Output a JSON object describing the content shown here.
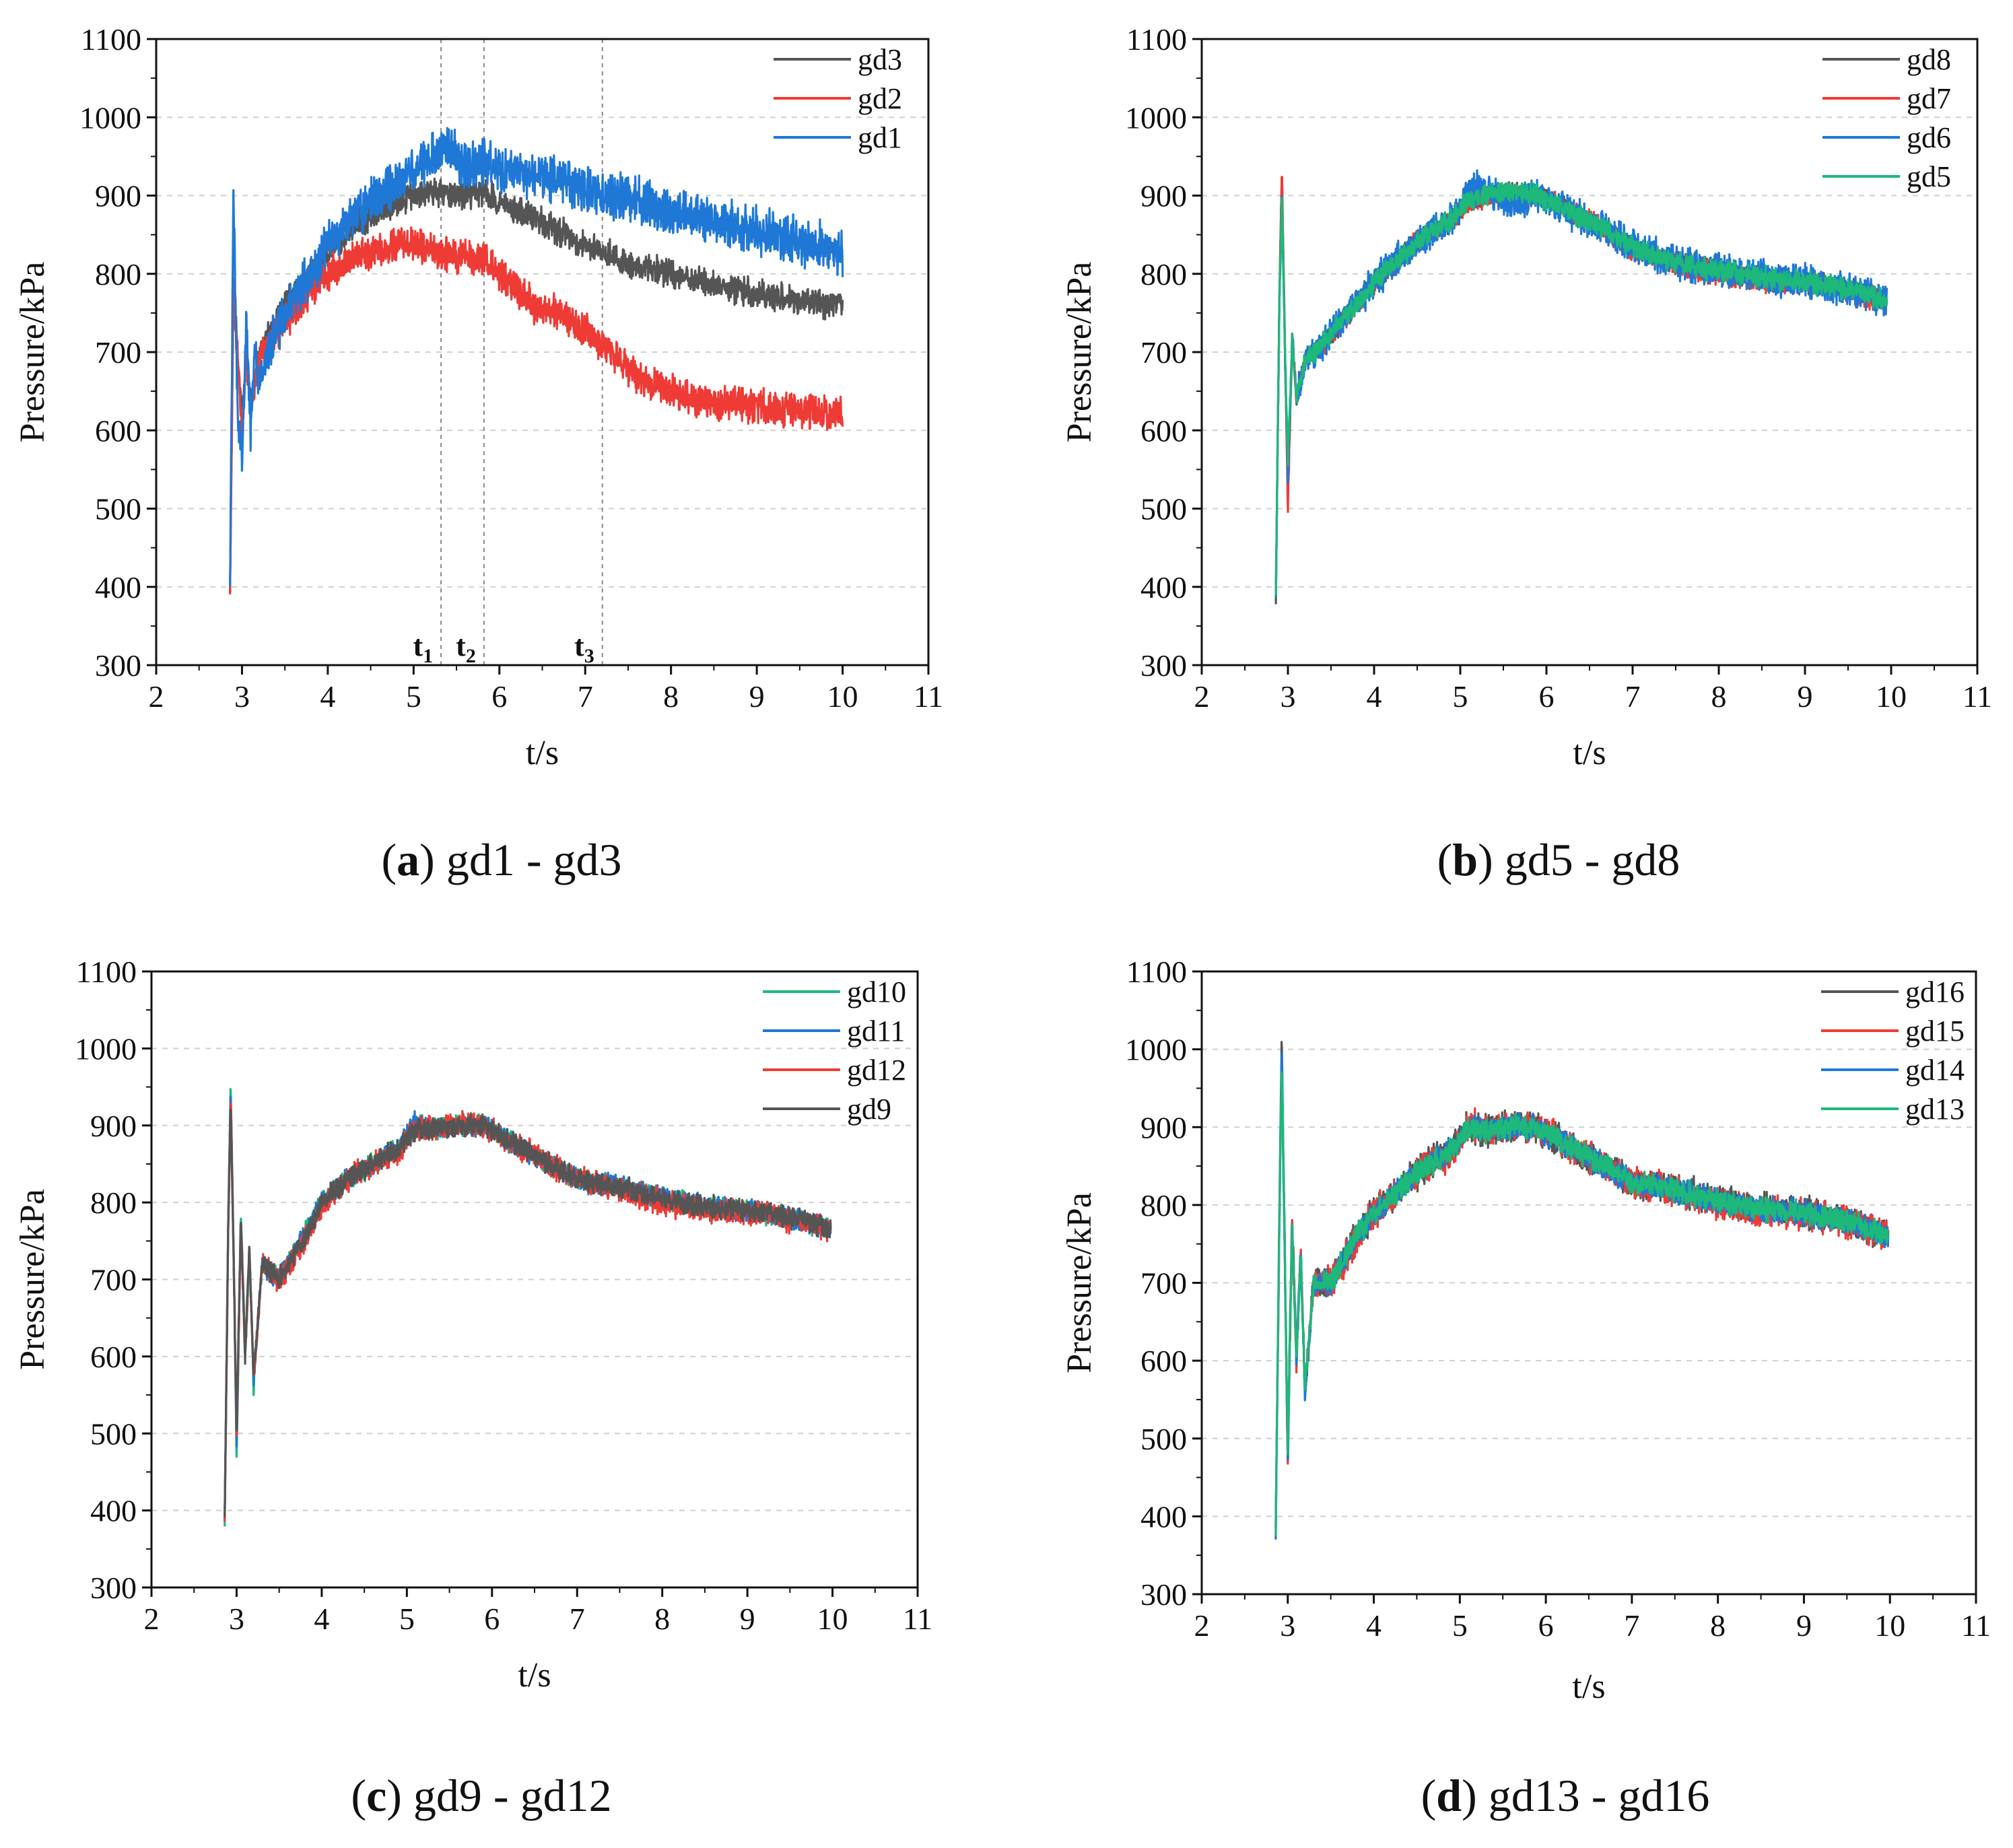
{
  "chart_data": [
    {
      "type": "line",
      "caption": {
        "letter": "a",
        "text": "gd1 - gd3"
      },
      "xlabel": "t/s",
      "ylabel": "Pressure/kPa",
      "xlim": [
        2,
        11
      ],
      "ylim": [
        300,
        1100
      ],
      "x_ticks": [
        "2",
        "3",
        "4",
        "5",
        "6",
        "7",
        "8",
        "9",
        "10",
        "11"
      ],
      "y_ticks": [
        "300",
        "400",
        "500",
        "600",
        "700",
        "800",
        "900",
        "1000",
        "1100"
      ],
      "grid": true,
      "legend_position": "top-right",
      "markers": [
        {
          "label": "t",
          "sub": "1",
          "x": 5.32
        },
        {
          "label": "t",
          "sub": "2",
          "x": 5.82
        },
        {
          "label": "t",
          "sub": "3",
          "x": 7.2
        }
      ],
      "series": [
        {
          "name": "gd3",
          "color": "#555555",
          "noise": 18,
          "x": [
            2.86,
            2.9,
            2.95,
            3.0,
            3.05,
            3.1,
            3.2,
            3.3,
            3.5,
            3.8,
            4.0,
            4.3,
            4.6,
            4.9,
            5.2,
            5.5,
            5.8,
            6.2,
            6.6,
            7.0,
            7.5,
            8.0,
            8.5,
            9.0,
            9.5,
            10.0
          ],
          "y": [
            390,
            780,
            700,
            610,
            700,
            640,
            700,
            720,
            760,
            800,
            830,
            860,
            880,
            895,
            905,
            900,
            905,
            880,
            860,
            835,
            815,
            800,
            785,
            775,
            765,
            760
          ]
        },
        {
          "name": "gd2",
          "color": "#ef3b36",
          "noise": 22,
          "x": [
            2.86,
            2.9,
            2.95,
            3.0,
            3.05,
            3.1,
            3.2,
            3.3,
            3.5,
            3.8,
            4.0,
            4.3,
            4.6,
            4.9,
            5.2,
            5.5,
            5.8,
            6.1,
            6.4,
            6.8,
            7.2,
            7.6,
            8.0,
            8.5,
            9.0,
            9.5,
            10.0
          ],
          "y": [
            390,
            780,
            690,
            600,
            690,
            630,
            690,
            710,
            740,
            780,
            800,
            820,
            830,
            840,
            830,
            820,
            820,
            790,
            760,
            745,
            710,
            670,
            650,
            635,
            630,
            625,
            622
          ]
        },
        {
          "name": "gd1",
          "color": "#1f78d6",
          "noise": 30,
          "x": [
            2.86,
            2.9,
            2.95,
            3.0,
            3.05,
            3.1,
            3.15,
            3.2,
            3.3,
            3.5,
            3.8,
            4.0,
            4.3,
            4.6,
            4.9,
            5.2,
            5.4,
            5.6,
            5.8,
            6.2,
            6.6,
            7.0,
            7.5,
            8.0,
            8.5,
            9.0,
            9.5,
            10.0
          ],
          "y": [
            385,
            910,
            620,
            560,
            740,
            600,
            700,
            660,
            700,
            750,
            800,
            840,
            870,
            900,
            920,
            950,
            960,
            940,
            940,
            930,
            925,
            910,
            895,
            880,
            865,
            855,
            840,
            830
          ]
        }
      ]
    },
    {
      "type": "line",
      "caption": {
        "letter": "b",
        "text": "gd5 - gd8"
      },
      "xlabel": "t/s",
      "ylabel": "Pressure/kPa",
      "xlim": [
        2,
        11
      ],
      "ylim": [
        300,
        1100
      ],
      "x_ticks": [
        "2",
        "3",
        "4",
        "5",
        "6",
        "7",
        "8",
        "9",
        "10",
        "11"
      ],
      "y_ticks": [
        "300",
        "400",
        "500",
        "600",
        "700",
        "800",
        "900",
        "1000",
        "1100"
      ],
      "grid": true,
      "legend_position": "top-right",
      "series": [
        {
          "name": "gd8",
          "color": "#555555",
          "noise": 14,
          "x": [
            2.86,
            2.9,
            2.93,
            2.97,
            3.0,
            3.05,
            3.1,
            3.2,
            3.4,
            3.7,
            4.0,
            4.3,
            4.6,
            4.9,
            5.1,
            5.3,
            5.6,
            5.9,
            6.2,
            6.6,
            7.0,
            7.5,
            8.0,
            8.5,
            9.0,
            9.5,
            9.95
          ],
          "y": [
            385,
            760,
            930,
            680,
            520,
            720,
            640,
            690,
            710,
            750,
            790,
            820,
            850,
            870,
            890,
            900,
            905,
            900,
            885,
            860,
            835,
            815,
            805,
            795,
            790,
            780,
            765
          ]
        },
        {
          "name": "gd7",
          "color": "#ef3b36",
          "noise": 14,
          "x": [
            2.86,
            2.9,
            2.93,
            2.97,
            3.0,
            3.05,
            3.1,
            3.2,
            3.4,
            3.7,
            4.0,
            4.3,
            4.6,
            4.9,
            5.1,
            5.3,
            5.6,
            5.9,
            6.2,
            6.6,
            7.0,
            7.5,
            8.0,
            8.5,
            9.0,
            9.5,
            9.95
          ],
          "y": [
            385,
            760,
            935,
            680,
            500,
            720,
            640,
            690,
            710,
            750,
            790,
            820,
            850,
            870,
            890,
            900,
            905,
            900,
            885,
            860,
            830,
            812,
            800,
            790,
            788,
            778,
            765
          ]
        },
        {
          "name": "gd6",
          "color": "#1f78d6",
          "noise": 22,
          "x": [
            2.86,
            2.9,
            2.93,
            2.97,
            3.0,
            3.05,
            3.1,
            3.2,
            3.4,
            3.7,
            4.0,
            4.3,
            4.6,
            4.9,
            5.1,
            5.3,
            5.6,
            5.9,
            6.2,
            6.6,
            7.0,
            7.5,
            8.0,
            8.5,
            9.0,
            9.5,
            9.95
          ],
          "y": [
            385,
            760,
            900,
            680,
            540,
            720,
            640,
            690,
            710,
            750,
            790,
            820,
            850,
            870,
            905,
            910,
            890,
            900,
            885,
            860,
            835,
            815,
            805,
            795,
            790,
            780,
            765
          ]
        },
        {
          "name": "gd5",
          "color": "#1db87a",
          "noise": 14,
          "x": [
            2.86,
            2.9,
            2.93,
            2.97,
            3.0,
            3.05,
            3.1,
            3.2,
            3.4,
            3.7,
            4.0,
            4.3,
            4.6,
            4.9,
            5.1,
            5.3,
            5.6,
            5.9,
            6.2,
            6.6,
            7.0,
            7.5,
            8.0,
            8.5,
            9.0,
            9.5,
            9.95
          ],
          "y": [
            385,
            760,
            895,
            680,
            560,
            720,
            640,
            690,
            710,
            750,
            790,
            820,
            850,
            870,
            895,
            900,
            905,
            900,
            885,
            860,
            835,
            815,
            805,
            795,
            790,
            780,
            765
          ]
        }
      ]
    },
    {
      "type": "line",
      "caption": {
        "letter": "c",
        "text": "gd9 - gd12"
      },
      "xlabel": "t/s",
      "ylabel": "Pressure/kPa",
      "xlim": [
        2,
        11
      ],
      "ylim": [
        300,
        1100
      ],
      "x_ticks": [
        "2",
        "3",
        "4",
        "5",
        "6",
        "7",
        "8",
        "9",
        "10",
        "11"
      ],
      "y_ticks": [
        "300",
        "400",
        "500",
        "600",
        "700",
        "800",
        "900",
        "1000",
        "1100"
      ],
      "grid": true,
      "legend_position": "top-right",
      "series": [
        {
          "name": "gd10",
          "color": "#1db87a",
          "noise": 14,
          "x": [
            2.86,
            2.9,
            2.93,
            2.97,
            3.0,
            3.05,
            3.1,
            3.15,
            3.2,
            3.3,
            3.5,
            3.8,
            4.0,
            4.3,
            4.6,
            4.9,
            5.1,
            5.3,
            5.6,
            5.9,
            6.2,
            6.6,
            7.0,
            7.5,
            8.0,
            8.5,
            9.0,
            9.5,
            9.98
          ],
          "y": [
            385,
            760,
            955,
            700,
            470,
            790,
            600,
            740,
            560,
            720,
            700,
            760,
            800,
            830,
            850,
            870,
            900,
            895,
            900,
            900,
            880,
            855,
            830,
            820,
            805,
            795,
            790,
            780,
            765
          ]
        },
        {
          "name": "gd11",
          "color": "#1f78d6",
          "noise": 14,
          "x": [
            2.86,
            2.9,
            2.93,
            2.97,
            3.0,
            3.05,
            3.1,
            3.15,
            3.2,
            3.3,
            3.5,
            3.8,
            4.0,
            4.3,
            4.6,
            4.9,
            5.1,
            5.3,
            5.6,
            5.9,
            6.2,
            6.6,
            7.0,
            7.5,
            8.0,
            8.5,
            9.0,
            9.5,
            9.98
          ],
          "y": [
            385,
            760,
            945,
            700,
            480,
            780,
            600,
            740,
            570,
            720,
            700,
            760,
            800,
            830,
            850,
            870,
            905,
            895,
            900,
            900,
            880,
            855,
            830,
            820,
            805,
            795,
            790,
            780,
            765
          ]
        },
        {
          "name": "gd12",
          "color": "#ef3b36",
          "noise": 16,
          "x": [
            2.86,
            2.9,
            2.93,
            2.97,
            3.0,
            3.05,
            3.1,
            3.15,
            3.2,
            3.3,
            3.5,
            3.8,
            4.0,
            4.3,
            4.6,
            4.9,
            5.1,
            5.3,
            5.6,
            5.9,
            6.2,
            6.6,
            7.0,
            7.5,
            8.0,
            8.5,
            9.0,
            9.5,
            9.98
          ],
          "y": [
            385,
            760,
            940,
            700,
            490,
            780,
            600,
            740,
            570,
            720,
            700,
            750,
            795,
            830,
            850,
            865,
            895,
            895,
            900,
            900,
            880,
            855,
            830,
            818,
            800,
            790,
            788,
            778,
            765
          ]
        },
        {
          "name": "gd9",
          "color": "#555555",
          "noise": 14,
          "x": [
            2.86,
            2.9,
            2.93,
            2.97,
            3.0,
            3.05,
            3.1,
            3.15,
            3.2,
            3.3,
            3.5,
            3.8,
            4.0,
            4.3,
            4.6,
            4.9,
            5.1,
            5.3,
            5.6,
            5.9,
            6.2,
            6.6,
            7.0,
            7.5,
            8.0,
            8.5,
            9.0,
            9.5,
            9.98
          ],
          "y": [
            385,
            760,
            930,
            700,
            500,
            780,
            600,
            740,
            575,
            720,
            700,
            755,
            800,
            830,
            850,
            870,
            895,
            895,
            900,
            900,
            880,
            855,
            830,
            820,
            805,
            795,
            790,
            780,
            765
          ]
        }
      ]
    },
    {
      "type": "line",
      "caption": {
        "letter": "d",
        "text": "gd13 - gd16"
      },
      "xlabel": "t/s",
      "ylabel": "Pressure/kPa",
      "xlim": [
        2,
        11
      ],
      "ylim": [
        300,
        1100
      ],
      "x_ticks": [
        "2",
        "3",
        "4",
        "5",
        "6",
        "7",
        "8",
        "9",
        "10",
        "11"
      ],
      "y_ticks": [
        "300",
        "400",
        "500",
        "600",
        "700",
        "800",
        "900",
        "1000",
        "1100"
      ],
      "grid": true,
      "legend_position": "top-right",
      "series": [
        {
          "name": "gd16",
          "color": "#555555",
          "noise": 20,
          "x": [
            2.86,
            2.9,
            2.93,
            2.97,
            3.0,
            3.05,
            3.1,
            3.15,
            3.2,
            3.3,
            3.5,
            3.8,
            4.0,
            4.3,
            4.6,
            4.9,
            5.1,
            5.3,
            5.6,
            5.9,
            6.2,
            6.6,
            7.0,
            7.5,
            8.0,
            8.5,
            9.0,
            9.5,
            9.98
          ],
          "y": [
            385,
            760,
            1020,
            700,
            480,
            790,
            600,
            740,
            560,
            700,
            700,
            760,
            790,
            820,
            850,
            870,
            900,
            895,
            900,
            900,
            880,
            855,
            830,
            820,
            805,
            795,
            790,
            780,
            760
          ]
        },
        {
          "name": "gd15",
          "color": "#ef3b36",
          "noise": 20,
          "x": [
            2.86,
            2.9,
            2.93,
            2.97,
            3.0,
            3.05,
            3.1,
            3.15,
            3.2,
            3.3,
            3.5,
            3.8,
            4.0,
            4.3,
            4.6,
            4.9,
            5.1,
            5.3,
            5.6,
            5.9,
            6.2,
            6.6,
            7.0,
            7.5,
            8.0,
            8.5,
            9.0,
            9.5,
            9.98
          ],
          "y": [
            385,
            760,
            980,
            700,
            460,
            780,
            600,
            740,
            560,
            700,
            700,
            755,
            790,
            820,
            850,
            865,
            905,
            895,
            900,
            900,
            880,
            855,
            830,
            818,
            800,
            790,
            788,
            778,
            760
          ]
        },
        {
          "name": "gd14",
          "color": "#1f78d6",
          "noise": 16,
          "x": [
            2.86,
            2.9,
            2.93,
            2.97,
            3.0,
            3.05,
            3.1,
            3.15,
            3.2,
            3.3,
            3.5,
            3.8,
            4.0,
            4.3,
            4.6,
            4.9,
            5.1,
            5.3,
            5.6,
            5.9,
            6.2,
            6.6,
            7.0,
            7.5,
            8.0,
            8.5,
            9.0,
            9.5,
            9.98
          ],
          "y": [
            385,
            760,
            1000,
            700,
            470,
            780,
            600,
            740,
            560,
            700,
            700,
            760,
            790,
            820,
            850,
            870,
            900,
            895,
            900,
            900,
            880,
            855,
            830,
            820,
            805,
            795,
            790,
            780,
            760
          ]
        },
        {
          "name": "gd13",
          "color": "#1db87a",
          "noise": 15,
          "x": [
            2.86,
            2.9,
            2.93,
            2.97,
            3.0,
            3.05,
            3.1,
            3.15,
            3.2,
            3.3,
            3.5,
            3.8,
            4.0,
            4.3,
            4.6,
            4.9,
            5.1,
            5.3,
            5.6,
            5.9,
            6.2,
            6.6,
            7.0,
            7.5,
            8.0,
            8.5,
            9.0,
            9.5,
            9.98
          ],
          "y": [
            385,
            760,
            990,
            700,
            480,
            780,
            600,
            740,
            565,
            700,
            700,
            760,
            790,
            820,
            850,
            870,
            900,
            895,
            900,
            900,
            880,
            855,
            830,
            820,
            805,
            795,
            790,
            780,
            760
          ]
        }
      ]
    }
  ]
}
